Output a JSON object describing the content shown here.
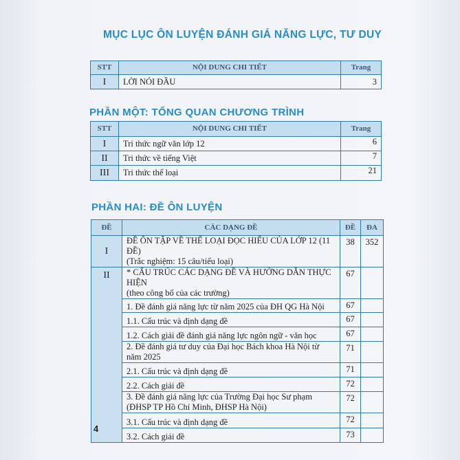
{
  "title": "MỤC LỤC ÔN LUYỆN ĐÁNH GIÁ NĂNG LỰC, TƯ DUY",
  "intro_table": {
    "headers": [
      "STT",
      "NỘI DUNG CHI TIẾT",
      "Trang"
    ],
    "rows": [
      {
        "stt": "I",
        "content": "LỜI NÓI ĐẦU",
        "page": "3"
      }
    ]
  },
  "part1": {
    "heading": "PHẦN MỘT: TỔNG QUAN CHƯƠNG TRÌNH",
    "headers": [
      "STT",
      "NỘI DUNG CHI TIẾT",
      "Trang"
    ],
    "rows": [
      {
        "stt": "I",
        "content": "Tri thức ngữ văn lớp 12",
        "page": "6"
      },
      {
        "stt": "II",
        "content": "Tri thức về tiếng Việt",
        "page": "7"
      },
      {
        "stt": "III",
        "content": "Tri thức thể loại",
        "page": "21"
      }
    ]
  },
  "part2": {
    "heading": "PHẦN HAI: ĐỀ ÔN LUYỆN",
    "headers": [
      "ĐỀ",
      "CÁC DẠNG ĐỀ",
      "ĐỀ",
      "ĐA"
    ],
    "row1": {
      "stt": "I",
      "line1": "ĐỀ ÔN TẬP VỀ THỂ LOẠI ĐỌC HIỂU CỦA LỚP 12 (11 ĐỀ)",
      "line2": "(Trắc nghiệm: 15 câu/tiểu loại)",
      "de": "38",
      "da": "352"
    },
    "row2": {
      "stt": "II",
      "line1": "* CẤU TRÚC CÁC DẠNG ĐỀ VÀ HƯỚNG DẪN THỰC HIỆN",
      "line2": "(theo công bố của các trường)",
      "de": "67"
    },
    "items": [
      {
        "line1": "1. Đề đánh giá năng lực từ năm 2025 của ĐH QG Hà Nội",
        "de": "67"
      },
      {
        "line1": "1.1. Cấu trúc và định dạng đề",
        "de": "67"
      },
      {
        "line1": "1.2. Cách giải đề đánh giá năng lực ngôn ngữ - văn học",
        "de": "67"
      },
      {
        "line1": "2. Đề đánh giá tư duy của Đại học Bách khoa Hà Nội từ năm 2025",
        "de": "71"
      },
      {
        "line1": "2.1. Cấu trúc và định dạng đề",
        "de": "71"
      },
      {
        "line1": "2.2. Cách giải đề",
        "de": "72"
      },
      {
        "line1": "3. Đề đánh giá năng lực của Trường Đại học Sư phạm",
        "line2": "(ĐHSP TP Hồ Chí Minh, ĐHSP Hà Nội)",
        "de": "72"
      },
      {
        "line1": "3.1. Cấu trúc và định dạng đề",
        "de": "72"
      },
      {
        "line1": "3.2. Cách giải đề",
        "de": "73"
      }
    ]
  },
  "page_number": "4",
  "colors": {
    "heading": "#2a8cc4",
    "border": "#2e7ca3",
    "cell_fill": "#c9e0f1"
  }
}
